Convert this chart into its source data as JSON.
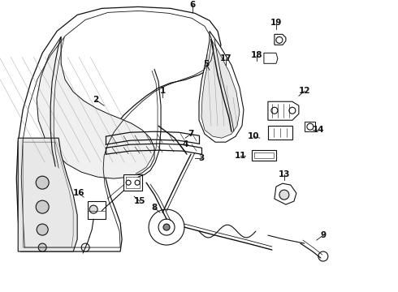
{
  "bg_color": "#ffffff",
  "line_color": "#111111",
  "fig_width": 4.9,
  "fig_height": 3.6,
  "dpi": 100,
  "label_fontsize": 7.5
}
